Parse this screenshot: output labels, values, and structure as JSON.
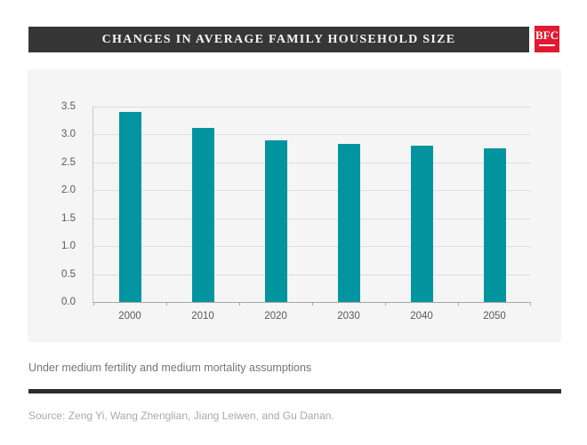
{
  "header": {
    "title": "CHANGES IN AVERAGE FAMILY HOUSEHOLD SIZE",
    "logo_text": "BFC"
  },
  "colors": {
    "header_bg": "#363636",
    "logo_red": "#e11931",
    "bar_teal": "#0295a0"
  },
  "chart_data": {
    "type": "bar",
    "title": "Changes in Average Family Household Size",
    "categories": [
      "2000",
      "2010",
      "2020",
      "2030",
      "2040",
      "2050"
    ],
    "values": [
      3.4,
      3.12,
      2.9,
      2.84,
      2.8,
      2.76
    ],
    "xlabel": "",
    "ylabel": "",
    "ylim": [
      0,
      3.5
    ],
    "ytick_labels": [
      "0.0",
      "0.5",
      "1.0",
      "1.5",
      "2.0",
      "2.5",
      "3.0",
      "3.5"
    ],
    "grid": true,
    "legend": "none",
    "bar_color": "#0295a0"
  },
  "footnote": "Under medium fertility and medium mortality assumptions",
  "source": "Source: Zeng Yi, Wang Zhenglian, Jiang Leiwen, and Gu Danan."
}
